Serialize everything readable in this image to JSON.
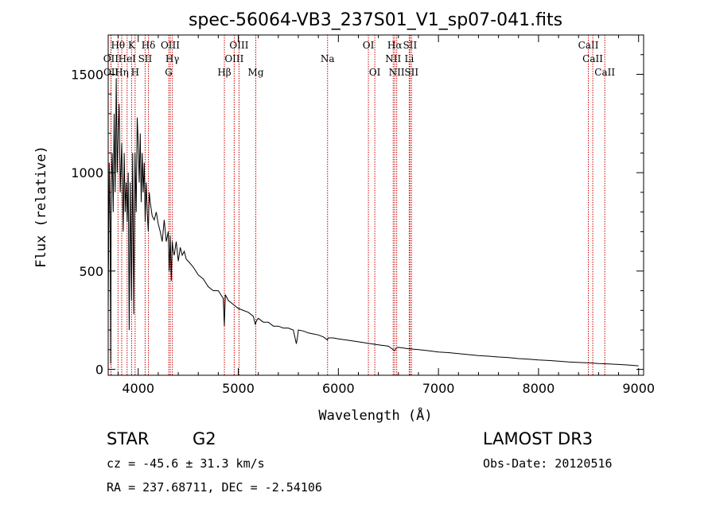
{
  "chart_data": {
    "type": "line",
    "title": "spec-56064-VB3_237S01_V1_sp07-041.fits",
    "xlabel": "Wavelength (Å)",
    "ylabel": "Flux (relative)",
    "xlim": [
      3700,
      9050
    ],
    "ylim": [
      -30,
      1700
    ],
    "xticks": [
      4000,
      5000,
      6000,
      7000,
      8000,
      9000
    ],
    "yticks": [
      0,
      500,
      1000,
      1500
    ],
    "series": [
      {
        "name": "spectrum",
        "x": [
          3700,
          3710,
          3720,
          3725,
          3730,
          3740,
          3750,
          3760,
          3770,
          3780,
          3790,
          3800,
          3810,
          3820,
          3835,
          3850,
          3860,
          3870,
          3880,
          3890,
          3900,
          3910,
          3920,
          3933,
          3945,
          3955,
          3968,
          3980,
          3990,
          4000,
          4010,
          4020,
          4030,
          4040,
          4050,
          4060,
          4070,
          4080,
          4090,
          4101,
          4110,
          4120,
          4140,
          4160,
          4180,
          4200,
          4220,
          4240,
          4260,
          4280,
          4300,
          4310,
          4320,
          4330,
          4340,
          4350,
          4360,
          4380,
          4400,
          4420,
          4440,
          4460,
          4480,
          4500,
          4550,
          4600,
          4650,
          4700,
          4750,
          4800,
          4850,
          4861,
          4870,
          4900,
          4950,
          5000,
          5050,
          5100,
          5150,
          5170,
          5185,
          5200,
          5250,
          5300,
          5350,
          5400,
          5450,
          5500,
          5550,
          5580,
          5590,
          5600,
          5650,
          5700,
          5750,
          5800,
          5850,
          5890,
          5900,
          5950,
          6000,
          6100,
          6200,
          6300,
          6400,
          6500,
          6563,
          6580,
          6600,
          6700,
          6800,
          6900,
          7000,
          7100,
          7200,
          7300,
          7400,
          7500,
          7600,
          7700,
          7800,
          7900,
          8000,
          8100,
          8200,
          8300,
          8400,
          8500,
          8600,
          8700,
          8800,
          8900,
          9000
        ],
        "y": [
          300,
          1050,
          700,
          30,
          950,
          1100,
          800,
          1300,
          900,
          1480,
          1000,
          1200,
          1350,
          900,
          1150,
          700,
          1100,
          800,
          950,
          750,
          1000,
          200,
          950,
          350,
          1100,
          280,
          1100,
          800,
          1280,
          1150,
          950,
          1200,
          850,
          1100,
          900,
          1050,
          750,
          950,
          800,
          700,
          900,
          850,
          780,
          760,
          800,
          740,
          700,
          650,
          760,
          650,
          700,
          500,
          680,
          450,
          650,
          600,
          580,
          650,
          550,
          620,
          580,
          600,
          560,
          550,
          520,
          480,
          460,
          420,
          400,
          400,
          360,
          220,
          380,
          350,
          330,
          310,
          300,
          290,
          270,
          230,
          250,
          260,
          240,
          240,
          220,
          220,
          210,
          210,
          200,
          130,
          160,
          200,
          195,
          185,
          180,
          175,
          165,
          150,
          160,
          160,
          155,
          148,
          140,
          132,
          125,
          118,
          95,
          110,
          112,
          105,
          100,
          95,
          88,
          85,
          80,
          75,
          70,
          67,
          63,
          60,
          55,
          52,
          48,
          45,
          42,
          38,
          35,
          33,
          30,
          28,
          25,
          22,
          18
        ]
      }
    ],
    "spectral_lines": [
      {
        "label": "Hθ",
        "wavelength": 3798,
        "row": 1
      },
      {
        "label": "Hη",
        "wavelength": 3835,
        "row": 3
      },
      {
        "label": "HeI",
        "wavelength": 3889,
        "row": 2
      },
      {
        "label": "K",
        "wavelength": 3934,
        "row": 1
      },
      {
        "label": "H",
        "wavelength": 3969,
        "row": 3
      },
      {
        "label": "SII",
        "wavelength": 4069,
        "row": 2
      },
      {
        "label": "Hδ",
        "wavelength": 4102,
        "row": 1
      },
      {
        "label": "OIII",
        "wavelength": 4320,
        "row": 1
      },
      {
        "label": "Hγ",
        "wavelength": 4341,
        "row": 2
      },
      {
        "label": "G",
        "wavelength": 4305,
        "row": 3
      },
      {
        "label": "Hβ",
        "wavelength": 4861,
        "row": 3
      },
      {
        "label": "OIII",
        "wavelength": 4959,
        "row": 2
      },
      {
        "label": "OIII",
        "wavelength": 5007,
        "row": 1
      },
      {
        "label": "Mg",
        "wavelength": 5175,
        "row": 3
      },
      {
        "label": "Na",
        "wavelength": 5892,
        "row": 2
      },
      {
        "label": "OI",
        "wavelength": 6300,
        "row": 1
      },
      {
        "label": "OI",
        "wavelength": 6364,
        "row": 3
      },
      {
        "label": "NII",
        "wavelength": 6548,
        "row": 2
      },
      {
        "label": "Hα",
        "wavelength": 6563,
        "row": 1
      },
      {
        "label": "NII",
        "wavelength": 6583,
        "row": 3
      },
      {
        "label": "SII",
        "wavelength": 6716,
        "row": 1
      },
      {
        "label": "Li",
        "wavelength": 6708,
        "row": 2
      },
      {
        "label": "SII",
        "wavelength": 6731,
        "row": 3
      },
      {
        "label": "CaII",
        "wavelength": 8498,
        "row": 1
      },
      {
        "label": "CaII",
        "wavelength": 8542,
        "row": 2
      },
      {
        "label": "CaII",
        "wavelength": 8662,
        "row": 3
      },
      {
        "label": "OII",
        "wavelength": 3727,
        "row": 2
      },
      {
        "label": "OII",
        "wavelength": 3729,
        "row": 3
      }
    ],
    "colors": {
      "line_marker": "#cc0000",
      "spectrum": "#000000"
    }
  },
  "info": {
    "object_class": "STAR",
    "subclass": "G2",
    "survey": "LAMOST DR3",
    "redshift": "cz = -45.6 ± 31.3 km/s",
    "obs_date": "Obs-Date: 20120516",
    "coords": "RA = 237.68711, DEC =  -2.54106"
  }
}
